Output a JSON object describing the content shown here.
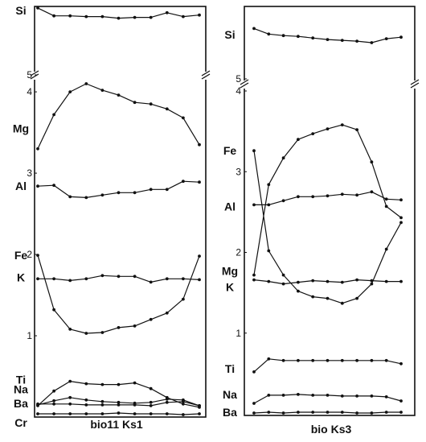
{
  "chart_data": [
    {
      "type": "line",
      "caption": "bio11 Ks1",
      "x": [
        1,
        2,
        3,
        4,
        5,
        6,
        7,
        8,
        9,
        10,
        11
      ],
      "ylim_lower": [
        0,
        4.1
      ],
      "ylim_upper": [
        5,
        5.9
      ],
      "scale_labels": [
        {
          "text": "5",
          "value": 5,
          "zone": "upper"
        },
        {
          "text": "4",
          "value": 4,
          "zone": "lower"
        },
        {
          "text": "3",
          "value": 3,
          "zone": "lower"
        },
        {
          "text": "2",
          "value": 2,
          "zone": "lower"
        },
        {
          "text": "1",
          "value": 1,
          "zone": "lower"
        }
      ],
      "axis_break": "between 4 and 5",
      "series": [
        {
          "name": "Si",
          "zone": "upper",
          "label_value": 5.82,
          "values": [
            5.85,
            5.75,
            5.75,
            5.74,
            5.74,
            5.72,
            5.73,
            5.73,
            5.79,
            5.74,
            5.76
          ]
        },
        {
          "name": "Mg",
          "zone": "lower",
          "label_value": 3.55,
          "values": [
            3.3,
            3.72,
            4.0,
            4.1,
            4.02,
            3.96,
            3.87,
            3.85,
            3.79,
            3.68,
            3.35
          ]
        },
        {
          "name": "Al",
          "zone": "lower",
          "label_value": 2.84,
          "values": [
            2.84,
            2.85,
            2.71,
            2.7,
            2.73,
            2.76,
            2.76,
            2.8,
            2.8,
            2.9,
            2.89
          ]
        },
        {
          "name": "Fe",
          "zone": "lower",
          "label_value": 1.99,
          "values": [
            1.99,
            1.32,
            1.08,
            1.03,
            1.04,
            1.1,
            1.12,
            1.2,
            1.28,
            1.45,
            1.98
          ]
        },
        {
          "name": "K",
          "zone": "lower",
          "label_value": 1.72,
          "values": [
            1.7,
            1.7,
            1.68,
            1.7,
            1.74,
            1.73,
            1.73,
            1.66,
            1.7,
            1.7,
            1.69
          ]
        },
        {
          "name": "Ti",
          "zone": "lower",
          "label_value": 0.46,
          "values": [
            0.14,
            0.32,
            0.44,
            0.41,
            0.4,
            0.4,
            0.42,
            0.35,
            0.24,
            0.16,
            0.12
          ]
        },
        {
          "name": "Na",
          "zone": "lower",
          "label_value": 0.34,
          "values": [
            0.15,
            0.2,
            0.24,
            0.21,
            0.19,
            0.18,
            0.17,
            0.18,
            0.22,
            0.21,
            0.14
          ]
        },
        {
          "name": "Ba",
          "zone": "lower",
          "label_value": 0.17,
          "values": [
            0.16,
            0.16,
            0.16,
            0.15,
            0.15,
            0.15,
            0.15,
            0.14,
            0.18,
            0.19,
            0.14
          ]
        },
        {
          "name": "Cr",
          "zone": "lower",
          "label_value": 0.01,
          "values": [
            0.04,
            0.04,
            0.04,
            0.04,
            0.04,
            0.05,
            0.04,
            0.04,
            0.04,
            0.03,
            0.04
          ]
        }
      ]
    },
    {
      "type": "line",
      "caption": "bio  Ks3",
      "x": [
        1,
        2,
        3,
        4,
        5,
        6,
        7,
        8,
        9,
        10,
        11
      ],
      "ylim_lower": [
        0,
        4.0
      ],
      "ylim_upper": [
        5,
        5.9
      ],
      "scale_labels": [
        {
          "text": "5",
          "value": 5,
          "zone": "upper"
        },
        {
          "text": "4",
          "value": 4,
          "zone": "lower"
        },
        {
          "text": "3",
          "value": 3,
          "zone": "lower"
        },
        {
          "text": "2",
          "value": 2,
          "zone": "lower"
        },
        {
          "text": "1",
          "value": 1,
          "zone": "lower"
        }
      ],
      "axis_break": "between 4 and 5",
      "series": [
        {
          "name": "Si",
          "zone": "upper",
          "label_value": 5.56,
          "values": [
            5.64,
            5.57,
            5.55,
            5.54,
            5.52,
            5.5,
            5.49,
            5.48,
            5.46,
            5.51,
            5.53
          ]
        },
        {
          "name": "Fe",
          "zone": "lower",
          "label_value": 3.26,
          "values": [
            3.26,
            2.02,
            1.72,
            1.52,
            1.45,
            1.43,
            1.37,
            1.43,
            1.61,
            2.04,
            2.37
          ]
        },
        {
          "name": "Al",
          "zone": "lower",
          "label_value": 2.57,
          "values": [
            2.59,
            2.59,
            2.64,
            2.69,
            2.69,
            2.7,
            2.72,
            2.71,
            2.75,
            2.66,
            2.65
          ]
        },
        {
          "name": "Mg",
          "zone": "lower",
          "label_value": 1.77,
          "values": [
            1.72,
            2.84,
            3.17,
            3.4,
            3.47,
            3.53,
            3.58,
            3.52,
            3.12,
            2.57,
            2.43
          ]
        },
        {
          "name": "K",
          "zone": "lower",
          "label_value": 1.57,
          "values": [
            1.66,
            1.64,
            1.61,
            1.63,
            1.65,
            1.64,
            1.63,
            1.66,
            1.65,
            1.64,
            1.64
          ]
        },
        {
          "name": "Ti",
          "zone": "lower",
          "label_value": 0.56,
          "values": [
            0.52,
            0.68,
            0.66,
            0.66,
            0.66,
            0.66,
            0.66,
            0.66,
            0.66,
            0.66,
            0.62
          ]
        },
        {
          "name": "Na",
          "zone": "lower",
          "label_value": 0.24,
          "values": [
            0.13,
            0.23,
            0.23,
            0.24,
            0.23,
            0.23,
            0.22,
            0.22,
            0.22,
            0.21,
            0.16
          ]
        },
        {
          "name": "Ba",
          "zone": "lower",
          "label_value": 0.02,
          "values": [
            0.01,
            0.02,
            0.01,
            0.02,
            0.02,
            0.02,
            0.02,
            0.01,
            0.01,
            0.02,
            0.02
          ]
        }
      ]
    }
  ]
}
